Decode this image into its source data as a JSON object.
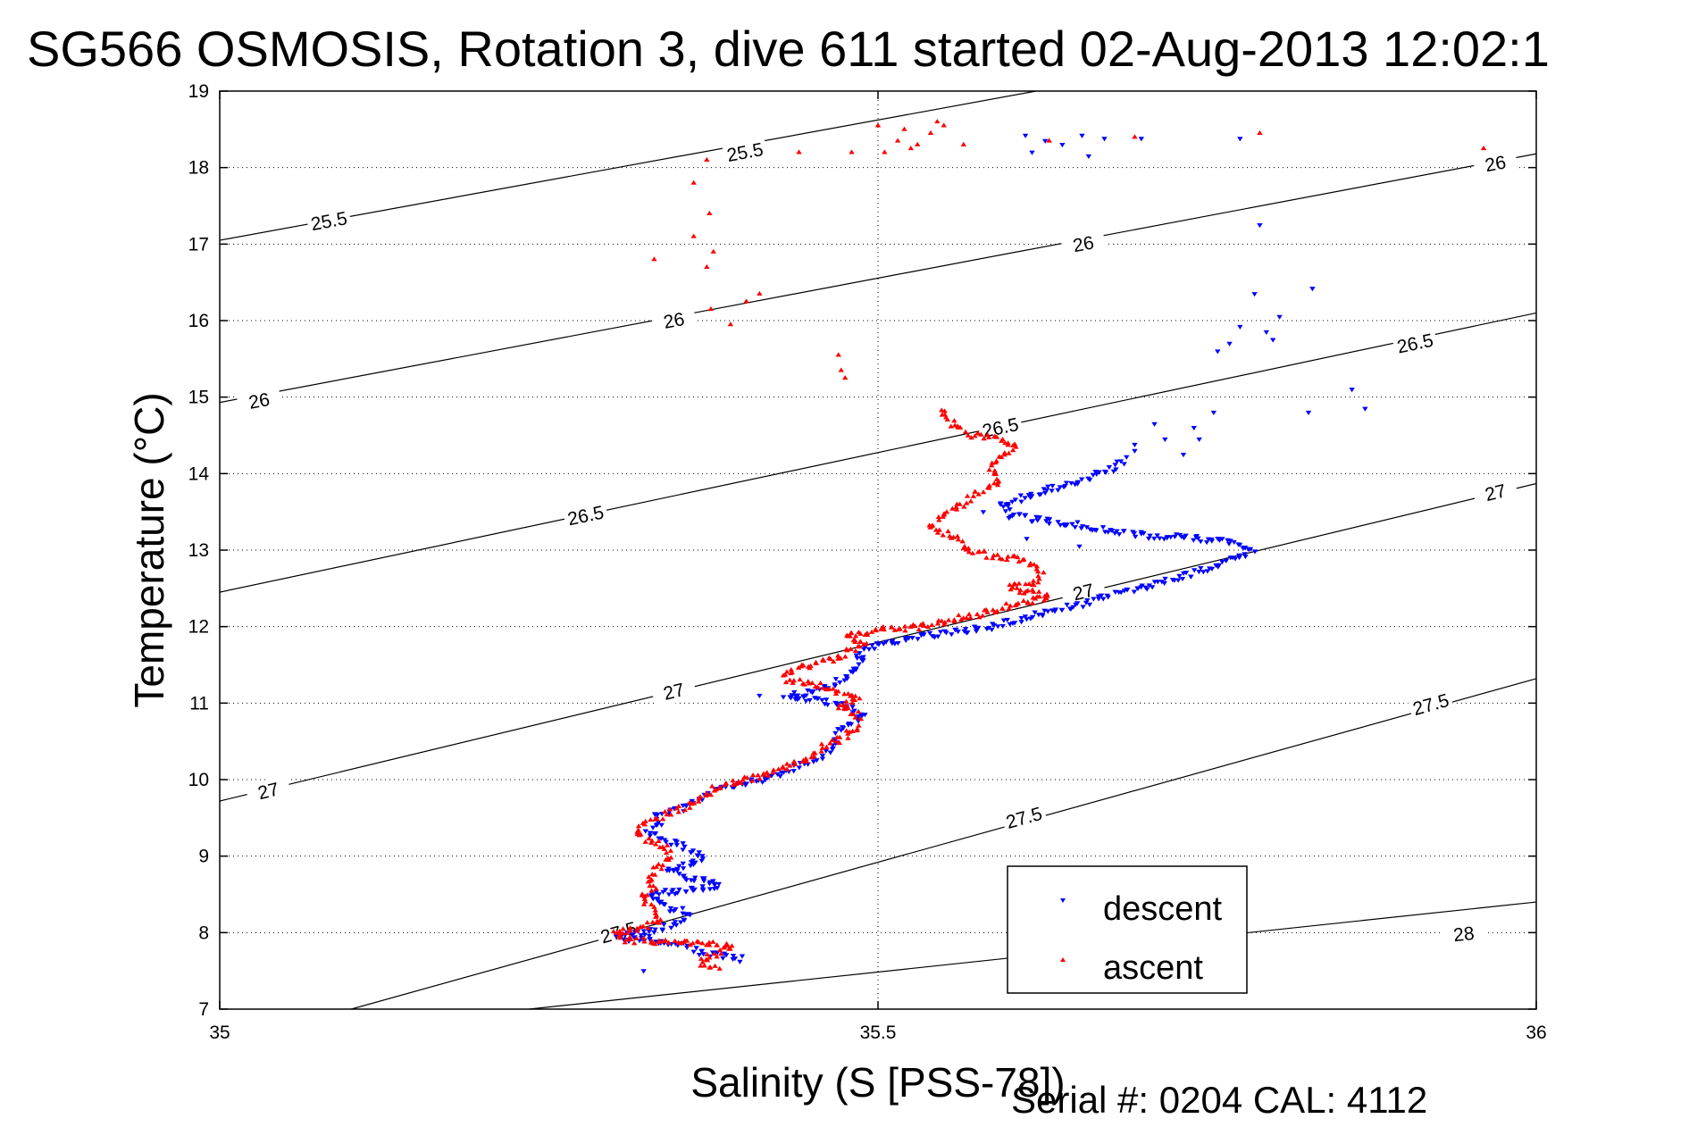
{
  "title": "SG566 OSMOSIS, Rotation 3, dive 611 started 02-Aug-2013 12:02:1",
  "serial_text": "Serial #: 0204  CAL: 4112",
  "chart_data": {
    "type": "scatter",
    "xlabel": "Salinity (S [PSS-78])",
    "ylabel": "Temperature (°C)",
    "xlim": [
      35,
      36
    ],
    "ylim": [
      7,
      19
    ],
    "x_ticks": [
      35,
      35.5,
      36
    ],
    "x_tick_labels": [
      "35",
      "35.5",
      "36"
    ],
    "y_ticks": [
      7,
      8,
      9,
      10,
      11,
      12,
      13,
      14,
      15,
      16,
      17,
      18,
      19
    ],
    "y_tick_labels": [
      "7",
      "8",
      "9",
      "10",
      "11",
      "12",
      "13",
      "14",
      "15",
      "16",
      "17",
      "18",
      "19"
    ],
    "grid": true,
    "grid_x": [
      35.5
    ],
    "legend_position": "lower-right",
    "colors": {
      "descent": "#0000ff",
      "ascent": "#ff0000",
      "contour": "#000000"
    },
    "density_contours": [
      {
        "label": "25.5",
        "points": [
          [
            35.0,
            17.05
          ],
          [
            35.62,
            19.0
          ]
        ],
        "labels": [
          {
            "text": "25.5",
            "x": 35.083,
            "y": 17.3
          },
          {
            "text": "25.5",
            "x": 35.399,
            "y": 18.2
          }
        ]
      },
      {
        "label": "26",
        "points": [
          [
            35.0,
            14.93
          ],
          [
            36.0,
            18.18
          ]
        ],
        "labels": [
          {
            "text": "26",
            "x": 35.03,
            "y": 14.95
          },
          {
            "text": "26",
            "x": 35.345,
            "y": 16.0
          },
          {
            "text": "26",
            "x": 35.656,
            "y": 17.0
          },
          {
            "text": "26",
            "x": 35.969,
            "y": 18.05
          }
        ]
      },
      {
        "label": "26.5",
        "points": [
          [
            35.0,
            12.45
          ],
          [
            36.0,
            16.1
          ]
        ],
        "labels": [
          {
            "text": "26.5",
            "x": 35.278,
            "y": 13.45
          },
          {
            "text": "26.5",
            "x": 35.593,
            "y": 14.6
          },
          {
            "text": "26.5",
            "x": 35.908,
            "y": 15.7
          }
        ]
      },
      {
        "label": "27",
        "points": [
          [
            35.0,
            9.72
          ],
          [
            36.0,
            13.87
          ]
        ],
        "labels": [
          {
            "text": "27",
            "x": 35.037,
            "y": 9.85
          },
          {
            "text": "27",
            "x": 35.345,
            "y": 11.15
          },
          {
            "text": "27",
            "x": 35.656,
            "y": 12.45
          },
          {
            "text": "27",
            "x": 35.969,
            "y": 13.75
          }
        ]
      },
      {
        "label": "27.5",
        "points": [
          [
            35.1,
            7.0
          ],
          [
            36.0,
            11.32
          ]
        ],
        "labels": [
          {
            "text": "27.5",
            "x": 35.303,
            "y": 8.0
          },
          {
            "text": "27.5",
            "x": 35.611,
            "y": 9.5
          },
          {
            "text": "27.5",
            "x": 35.92,
            "y": 10.98
          }
        ]
      },
      {
        "label": "28",
        "points": [
          [
            35.235,
            7.0
          ],
          [
            36.0,
            8.4
          ]
        ],
        "labels": [
          {
            "text": "28",
            "x": 35.945,
            "y": 7.98
          }
        ]
      }
    ],
    "series": [
      {
        "name": "descent",
        "marker": "triangle-down",
        "color": "#0000ff",
        "path": [
          [
            35.397,
            7.65
          ],
          [
            35.381,
            7.7
          ],
          [
            35.362,
            7.75
          ],
          [
            35.35,
            7.85
          ],
          [
            35.32,
            7.9
          ],
          [
            35.3,
            7.95
          ],
          [
            35.325,
            8.0
          ],
          [
            35.345,
            8.1
          ],
          [
            35.356,
            8.25
          ],
          [
            35.338,
            8.35
          ],
          [
            35.325,
            8.5
          ],
          [
            35.352,
            8.55
          ],
          [
            35.38,
            8.62
          ],
          [
            35.363,
            8.7
          ],
          [
            35.34,
            8.8
          ],
          [
            35.36,
            8.9
          ],
          [
            35.368,
            9.0
          ],
          [
            35.352,
            9.12
          ],
          [
            35.34,
            9.2
          ],
          [
            35.325,
            9.3
          ],
          [
            35.335,
            9.42
          ],
          [
            35.33,
            9.55
          ],
          [
            35.35,
            9.62
          ],
          [
            35.362,
            9.72
          ],
          [
            35.375,
            9.85
          ],
          [
            35.395,
            9.95
          ],
          [
            35.415,
            10.0
          ],
          [
            35.43,
            10.1
          ],
          [
            35.445,
            10.2
          ],
          [
            35.46,
            10.35
          ],
          [
            35.47,
            10.5
          ],
          [
            35.468,
            10.6
          ],
          [
            35.475,
            10.7
          ],
          [
            35.49,
            10.85
          ],
          [
            35.478,
            10.95
          ],
          [
            35.47,
            11.0
          ],
          [
            35.45,
            11.05
          ],
          [
            35.43,
            11.1
          ],
          [
            35.45,
            11.15
          ],
          [
            35.465,
            11.25
          ],
          [
            35.478,
            11.35
          ],
          [
            35.48,
            11.45
          ],
          [
            35.49,
            11.55
          ],
          [
            35.485,
            11.65
          ],
          [
            35.5,
            11.75
          ],
          [
            35.525,
            11.85
          ],
          [
            35.555,
            11.92
          ],
          [
            35.585,
            12.0
          ],
          [
            35.605,
            12.08
          ],
          [
            35.63,
            12.2
          ],
          [
            35.655,
            12.3
          ],
          [
            35.685,
            12.45
          ],
          [
            35.72,
            12.6
          ],
          [
            35.75,
            12.75
          ],
          [
            35.77,
            12.9
          ],
          [
            35.785,
            13.0
          ],
          [
            35.768,
            13.1
          ],
          [
            35.74,
            13.15
          ],
          [
            35.7,
            13.2
          ],
          [
            35.665,
            13.3
          ],
          [
            35.6,
            13.45
          ],
          [
            35.595,
            13.6
          ],
          [
            35.615,
            13.72
          ],
          [
            35.64,
            13.85
          ],
          [
            35.66,
            13.95
          ],
          [
            35.675,
            14.05
          ],
          [
            35.69,
            14.2
          ]
        ],
        "points": [
          [
            35.322,
            7.5
          ],
          [
            35.41,
            11.1
          ],
          [
            35.612,
            18.42
          ],
          [
            35.627,
            18.35
          ],
          [
            35.64,
            18.3
          ],
          [
            35.655,
            18.42
          ],
          [
            35.672,
            18.38
          ],
          [
            35.617,
            18.2
          ],
          [
            35.66,
            18.15
          ],
          [
            35.7,
            18.38
          ],
          [
            35.775,
            18.38
          ],
          [
            35.79,
            17.25
          ],
          [
            35.786,
            16.35
          ],
          [
            35.83,
            16.42
          ],
          [
            35.805,
            16.05
          ],
          [
            35.795,
            15.85
          ],
          [
            35.775,
            15.92
          ],
          [
            35.767,
            15.7
          ],
          [
            35.758,
            15.6
          ],
          [
            35.8,
            15.75
          ],
          [
            35.86,
            15.1
          ],
          [
            35.87,
            14.85
          ],
          [
            35.827,
            14.8
          ],
          [
            35.755,
            14.8
          ],
          [
            35.71,
            14.65
          ],
          [
            35.74,
            14.6
          ],
          [
            35.718,
            14.45
          ],
          [
            35.695,
            14.3
          ],
          [
            35.695,
            14.38
          ],
          [
            35.732,
            14.25
          ],
          [
            35.744,
            14.45
          ],
          [
            35.627,
            13.75
          ],
          [
            35.593,
            13.6
          ],
          [
            35.58,
            13.5
          ],
          [
            35.63,
            13.35
          ],
          [
            35.613,
            13.15
          ],
          [
            35.653,
            13.05
          ]
        ]
      },
      {
        "name": "ascent",
        "marker": "triangle-up",
        "color": "#ff0000",
        "path": [
          [
            35.378,
            7.55
          ],
          [
            35.365,
            7.6
          ],
          [
            35.372,
            7.7
          ],
          [
            35.39,
            7.8
          ],
          [
            35.37,
            7.85
          ],
          [
            35.345,
            7.88
          ],
          [
            35.31,
            7.9
          ],
          [
            35.3,
            7.98
          ],
          [
            35.318,
            8.05
          ],
          [
            35.335,
            8.15
          ],
          [
            35.33,
            8.3
          ],
          [
            35.32,
            8.45
          ],
          [
            35.33,
            8.55
          ],
          [
            35.325,
            8.7
          ],
          [
            35.33,
            8.82
          ],
          [
            35.342,
            8.95
          ],
          [
            35.34,
            9.1
          ],
          [
            35.322,
            9.22
          ],
          [
            35.315,
            9.3
          ],
          [
            35.325,
            9.45
          ],
          [
            35.34,
            9.55
          ],
          [
            35.355,
            9.65
          ],
          [
            35.368,
            9.8
          ],
          [
            35.382,
            9.92
          ],
          [
            35.4,
            10.0
          ],
          [
            35.42,
            10.1
          ],
          [
            35.437,
            10.2
          ],
          [
            35.45,
            10.3
          ],
          [
            35.46,
            10.45
          ],
          [
            35.475,
            10.55
          ],
          [
            35.485,
            10.7
          ],
          [
            35.485,
            10.85
          ],
          [
            35.47,
            10.95
          ],
          [
            35.485,
            11.05
          ],
          [
            35.47,
            11.15
          ],
          [
            35.45,
            11.25
          ],
          [
            35.43,
            11.3
          ],
          [
            35.43,
            11.4
          ],
          [
            35.45,
            11.5
          ],
          [
            35.47,
            11.6
          ],
          [
            35.48,
            11.7
          ],
          [
            35.49,
            11.8
          ],
          [
            35.475,
            11.88
          ],
          [
            35.5,
            11.95
          ],
          [
            35.535,
            12.0
          ],
          [
            35.56,
            12.1
          ],
          [
            35.585,
            12.2
          ],
          [
            35.61,
            12.3
          ],
          [
            35.63,
            12.4
          ],
          [
            35.6,
            12.5
          ],
          [
            35.62,
            12.58
          ],
          [
            35.625,
            12.7
          ],
          [
            35.615,
            12.85
          ],
          [
            35.58,
            12.95
          ],
          [
            35.565,
            13.05
          ],
          [
            35.56,
            13.15
          ],
          [
            35.54,
            13.3
          ],
          [
            35.55,
            13.45
          ],
          [
            35.565,
            13.6
          ],
          [
            35.575,
            13.75
          ],
          [
            35.59,
            13.85
          ],
          [
            35.59,
            14.0
          ],
          [
            35.585,
            14.1
          ],
          [
            35.595,
            14.25
          ],
          [
            35.605,
            14.35
          ],
          [
            35.595,
            14.45
          ],
          [
            35.57,
            14.5
          ],
          [
            35.56,
            14.6
          ],
          [
            35.555,
            14.7
          ],
          [
            35.545,
            14.85
          ]
        ],
        "points": [
          [
            35.37,
            18.1
          ],
          [
            35.36,
            17.8
          ],
          [
            35.372,
            17.4
          ],
          [
            35.36,
            17.1
          ],
          [
            35.375,
            16.9
          ],
          [
            35.37,
            16.7
          ],
          [
            35.33,
            16.8
          ],
          [
            35.4,
            16.25
          ],
          [
            35.41,
            16.35
          ],
          [
            35.373,
            16.15
          ],
          [
            35.388,
            15.95
          ],
          [
            35.47,
            15.55
          ],
          [
            35.472,
            15.35
          ],
          [
            35.475,
            15.25
          ],
          [
            35.44,
            18.2
          ],
          [
            35.48,
            18.2
          ],
          [
            35.5,
            18.55
          ],
          [
            35.505,
            18.2
          ],
          [
            35.515,
            18.35
          ],
          [
            35.52,
            18.5
          ],
          [
            35.525,
            18.25
          ],
          [
            35.53,
            18.3
          ],
          [
            35.54,
            18.45
          ],
          [
            35.545,
            18.6
          ],
          [
            35.55,
            18.55
          ],
          [
            35.565,
            18.3
          ],
          [
            35.63,
            18.35
          ],
          [
            35.695,
            18.4
          ],
          [
            35.79,
            18.45
          ],
          [
            35.96,
            18.25
          ]
        ]
      }
    ]
  }
}
